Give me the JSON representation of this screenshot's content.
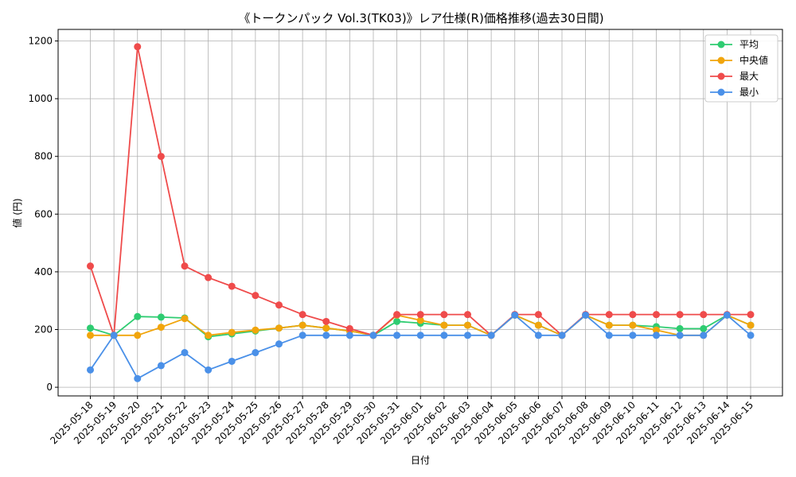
{
  "chart_data": {
    "type": "line",
    "title": "《トークンパック Vol.3(TK03)》レア仕様(R)価格推移(過去30日間)",
    "xlabel": "日付",
    "ylabel": "値 (円)",
    "ylim": [
      -30,
      1240
    ],
    "yticks": [
      0,
      200,
      400,
      600,
      800,
      1000,
      1200
    ],
    "grid": true,
    "legend_position": "top-right",
    "categories": [
      "2025-05-18",
      "2025-05-19",
      "2025-05-20",
      "2025-05-21",
      "2025-05-22",
      "2025-05-23",
      "2025-05-24",
      "2025-05-25",
      "2025-05-26",
      "2025-05-27",
      "2025-05-28",
      "2025-05-29",
      "2025-05-30",
      "2025-05-31",
      "2025-06-01",
      "2025-06-02",
      "2025-06-03",
      "2025-06-04",
      "2025-06-05",
      "2025-06-06",
      "2025-06-07",
      "2025-06-08",
      "2025-06-09",
      "2025-06-10",
      "2025-06-11",
      "2025-06-12",
      "2025-06-13",
      "2025-06-14",
      "2025-06-15"
    ],
    "series": [
      {
        "name": "平均",
        "color": "#2ecc71",
        "values": [
          205,
          180,
          245,
          243,
          240,
          175,
          185,
          195,
          205,
          215,
          205,
          195,
          180,
          228,
          222,
          215,
          215,
          180,
          250,
          215,
          180,
          250,
          215,
          215,
          210,
          203,
          203,
          250,
          215
        ]
      },
      {
        "name": "中央値",
        "color": "#f1a50c",
        "values": [
          180,
          180,
          180,
          208,
          238,
          180,
          190,
          198,
          205,
          215,
          205,
          195,
          180,
          250,
          232,
          215,
          215,
          180,
          250,
          215,
          180,
          250,
          215,
          215,
          198,
          180,
          180,
          250,
          215
        ]
      },
      {
        "name": "最大",
        "color": "#ef4b4b",
        "values": [
          420,
          180,
          1180,
          800,
          420,
          380,
          350,
          318,
          285,
          252,
          228,
          203,
          180,
          252,
          252,
          252,
          252,
          180,
          252,
          252,
          180,
          252,
          252,
          252,
          252,
          252,
          252,
          252,
          252
        ]
      },
      {
        "name": "最小",
        "color": "#4a90e8",
        "values": [
          60,
          180,
          30,
          75,
          120,
          60,
          90,
          120,
          150,
          180,
          180,
          180,
          180,
          180,
          180,
          180,
          180,
          180,
          250,
          180,
          180,
          250,
          180,
          180,
          180,
          180,
          180,
          250,
          180
        ]
      }
    ]
  }
}
